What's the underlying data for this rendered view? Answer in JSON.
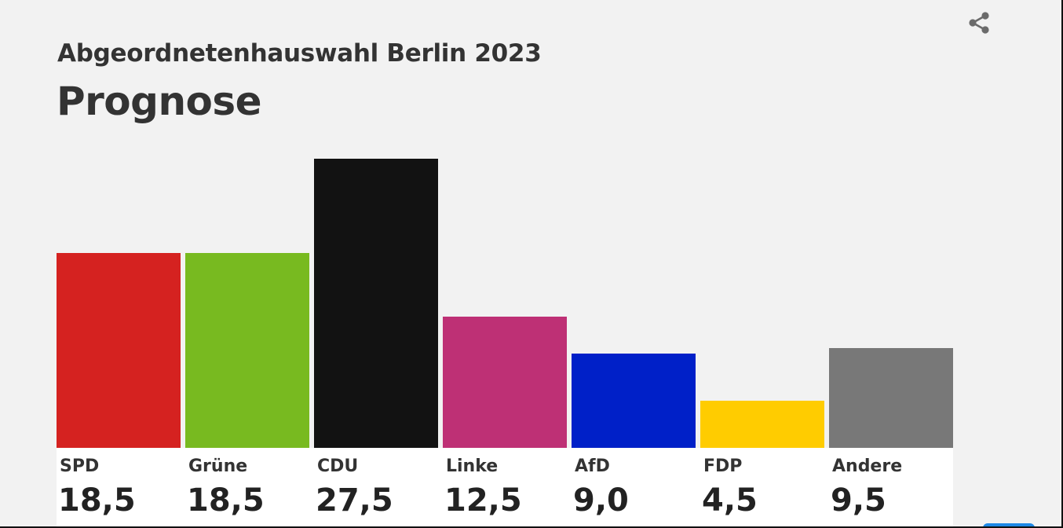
{
  "header": {
    "supertitle": "Abgeordnetenhauswahl Berlin 2023",
    "title": "Prognose"
  },
  "share_icon": "share-icon",
  "chart_data": {
    "type": "bar",
    "title": "Prognose",
    "subtitle": "Abgeordnetenhauswahl Berlin 2023",
    "categories": [
      "SPD",
      "Grüne",
      "CDU",
      "Linke",
      "AfD",
      "FDP",
      "Andere"
    ],
    "values": [
      18.5,
      18.5,
      27.5,
      12.5,
      9.0,
      4.5,
      9.5
    ],
    "value_labels": [
      "18,5",
      "18,5",
      "27,5",
      "12,5",
      "9,0",
      "4,5",
      "9,5"
    ],
    "colors": [
      "#d52220",
      "#78ba20",
      "#121212",
      "#be3075",
      "#0020c8",
      "#ffcc00",
      "#787878"
    ],
    "ylim": [
      0,
      27.5
    ],
    "grid": false,
    "legend": "none",
    "xlabel": "",
    "ylabel": ""
  },
  "colors": {
    "background": "#f2f2f2",
    "label_background": "#ffffff",
    "text": "#333333",
    "accent_tab": "#1e88e5"
  }
}
